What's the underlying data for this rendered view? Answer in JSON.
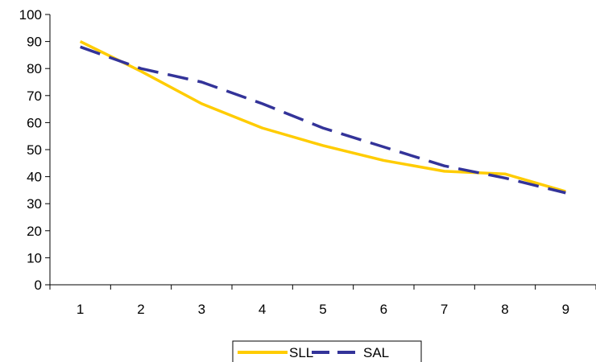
{
  "chart_data": {
    "type": "line",
    "title": "",
    "xlabel": "",
    "ylabel": "",
    "categories": [
      "1",
      "2",
      "3",
      "4",
      "5",
      "6",
      "7",
      "8",
      "9"
    ],
    "ylim": [
      0,
      100
    ],
    "yticks": [
      0,
      10,
      20,
      30,
      40,
      50,
      60,
      70,
      80,
      90,
      100
    ],
    "grid": false,
    "legend_position": "bottom",
    "series": [
      {
        "name": "SLL",
        "color": "#FFCC00",
        "dash": "solid",
        "values": [
          90,
          79,
          67,
          58,
          51.5,
          46,
          42,
          41,
          34.5
        ]
      },
      {
        "name": "SAL",
        "color": "#333399",
        "dash": "dashed",
        "values": [
          88,
          80,
          75,
          67,
          58,
          51,
          44,
          39.5,
          34
        ]
      }
    ]
  }
}
